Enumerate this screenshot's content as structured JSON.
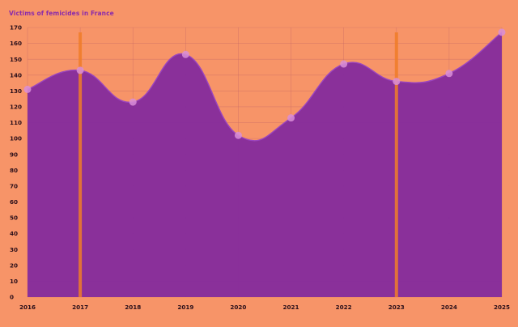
{
  "chart_data": {
    "type": "area",
    "title": "Victims of femicides in France",
    "xlabel": "",
    "ylabel": "",
    "x": [
      "2016",
      "2017",
      "2018",
      "2019",
      "2020",
      "2021",
      "2022",
      "2023",
      "2024",
      "2025"
    ],
    "values": [
      131,
      143,
      123,
      153,
      102,
      113,
      147,
      136,
      141,
      167
    ],
    "ylim": [
      0,
      170
    ],
    "yticks": [
      0,
      10,
      20,
      30,
      40,
      50,
      60,
      70,
      80,
      90,
      100,
      110,
      120,
      130,
      140,
      150,
      160,
      170
    ],
    "highlight_years": [
      "2017",
      "2023"
    ],
    "grid": true,
    "legend": "none",
    "colors": {
      "background": "#F79468",
      "area": "#852C9C",
      "line": "#9A45C0",
      "marker": "#D98ED8",
      "highlight": "#F07D28",
      "grid": "#C86A66",
      "tick_text": "#2A0F1A",
      "title_text": "#8A2BAA"
    }
  }
}
